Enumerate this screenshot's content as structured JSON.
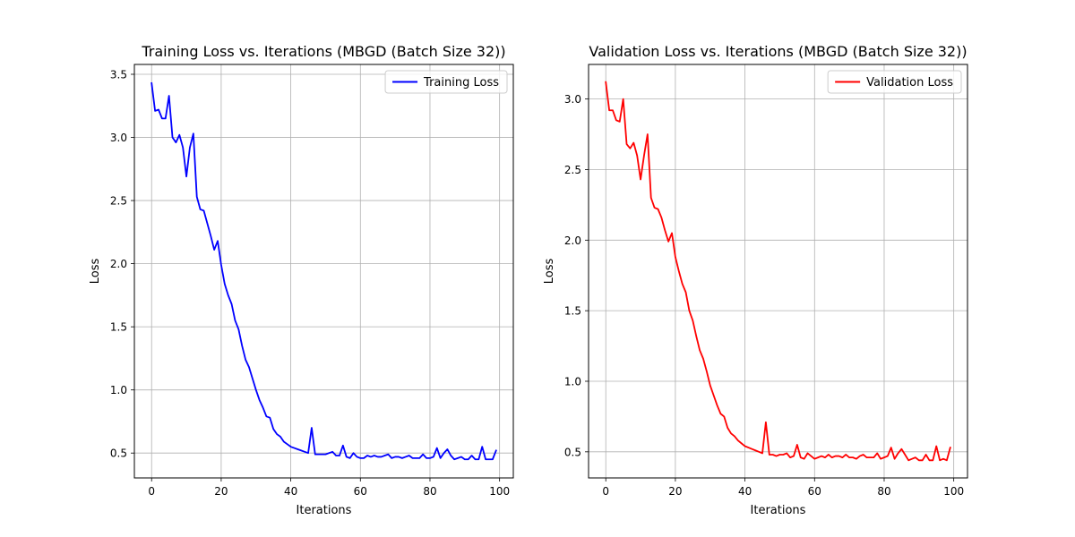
{
  "chart_data": [
    {
      "type": "line",
      "title": "Training Loss vs. Iterations (MBGD (Batch Size 32))",
      "xlabel": "Iterations",
      "ylabel": "Loss",
      "xlim": [
        -4.95,
        103.95
      ],
      "ylim": [
        0.303,
        3.578
      ],
      "xticks": [
        0,
        20,
        40,
        60,
        80,
        100
      ],
      "yticks": [
        0.5,
        1.0,
        1.5,
        2.0,
        2.5,
        3.0,
        3.5
      ],
      "grid": true,
      "legend_position": "upper right",
      "series": [
        {
          "name": "Training Loss",
          "color": "#0000ff",
          "x": [
            0,
            1,
            2,
            3,
            4,
            5,
            6,
            7,
            8,
            9,
            10,
            11,
            12,
            13,
            14,
            15,
            16,
            17,
            18,
            19,
            20,
            21,
            22,
            23,
            24,
            25,
            26,
            27,
            28,
            29,
            30,
            31,
            32,
            33,
            34,
            35,
            36,
            37,
            38,
            39,
            40,
            41,
            42,
            43,
            44,
            45,
            46,
            47,
            48,
            49,
            50,
            51,
            52,
            53,
            54,
            55,
            56,
            57,
            58,
            59,
            60,
            61,
            62,
            63,
            64,
            65,
            66,
            67,
            68,
            69,
            70,
            71,
            72,
            73,
            74,
            75,
            76,
            77,
            78,
            79,
            80,
            81,
            82,
            83,
            84,
            85,
            86,
            87,
            88,
            89,
            90,
            91,
            92,
            93,
            94,
            95,
            96,
            97,
            98,
            99
          ],
          "values": [
            3.43,
            3.21,
            3.22,
            3.15,
            3.15,
            3.33,
            3.0,
            2.96,
            3.02,
            2.92,
            2.69,
            2.92,
            3.03,
            2.53,
            2.43,
            2.42,
            2.32,
            2.22,
            2.11,
            2.18,
            1.99,
            1.84,
            1.75,
            1.68,
            1.55,
            1.48,
            1.35,
            1.24,
            1.18,
            1.09,
            1.0,
            0.92,
            0.86,
            0.79,
            0.78,
            0.69,
            0.65,
            0.63,
            0.59,
            0.57,
            0.55,
            0.54,
            0.53,
            0.52,
            0.51,
            0.5,
            0.7,
            0.49,
            0.49,
            0.49,
            0.49,
            0.5,
            0.51,
            0.48,
            0.48,
            0.56,
            0.47,
            0.46,
            0.5,
            0.47,
            0.46,
            0.46,
            0.48,
            0.47,
            0.48,
            0.47,
            0.47,
            0.48,
            0.49,
            0.46,
            0.47,
            0.47,
            0.46,
            0.47,
            0.48,
            0.46,
            0.46,
            0.46,
            0.49,
            0.46,
            0.46,
            0.47,
            0.54,
            0.46,
            0.5,
            0.53,
            0.48,
            0.45,
            0.46,
            0.47,
            0.45,
            0.45,
            0.48,
            0.45,
            0.45,
            0.55,
            0.45,
            0.45,
            0.45,
            0.52
          ]
        }
      ]
    },
    {
      "type": "line",
      "title": "Validation Loss vs. Iterations (MBGD (Batch Size 32))",
      "xlabel": "Iterations",
      "ylabel": "Loss",
      "xlim": [
        -4.95,
        103.95
      ],
      "ylim": [
        0.315,
        3.245
      ],
      "xticks": [
        0,
        20,
        40,
        60,
        80,
        100
      ],
      "yticks": [
        0.5,
        1.0,
        1.5,
        2.0,
        2.5,
        3.0
      ],
      "grid": true,
      "legend_position": "upper right",
      "series": [
        {
          "name": "Validation Loss",
          "color": "#ff0000",
          "x": [
            0,
            1,
            2,
            3,
            4,
            5,
            6,
            7,
            8,
            9,
            10,
            11,
            12,
            13,
            14,
            15,
            16,
            17,
            18,
            19,
            20,
            21,
            22,
            23,
            24,
            25,
            26,
            27,
            28,
            29,
            30,
            31,
            32,
            33,
            34,
            35,
            36,
            37,
            38,
            39,
            40,
            41,
            42,
            43,
            44,
            45,
            46,
            47,
            48,
            49,
            50,
            51,
            52,
            53,
            54,
            55,
            56,
            57,
            58,
            59,
            60,
            61,
            62,
            63,
            64,
            65,
            66,
            67,
            68,
            69,
            70,
            71,
            72,
            73,
            74,
            75,
            76,
            77,
            78,
            79,
            80,
            81,
            82,
            83,
            84,
            85,
            86,
            87,
            88,
            89,
            90,
            91,
            92,
            93,
            94,
            95,
            96,
            97,
            98,
            99
          ],
          "values": [
            3.12,
            2.92,
            2.92,
            2.85,
            2.84,
            3.0,
            2.68,
            2.65,
            2.69,
            2.6,
            2.43,
            2.6,
            2.75,
            2.3,
            2.23,
            2.22,
            2.16,
            2.07,
            1.99,
            2.05,
            1.88,
            1.78,
            1.69,
            1.63,
            1.5,
            1.43,
            1.32,
            1.22,
            1.16,
            1.07,
            0.97,
            0.9,
            0.83,
            0.77,
            0.75,
            0.67,
            0.63,
            0.61,
            0.58,
            0.56,
            0.54,
            0.53,
            0.52,
            0.51,
            0.5,
            0.49,
            0.71,
            0.48,
            0.48,
            0.47,
            0.48,
            0.48,
            0.49,
            0.46,
            0.47,
            0.55,
            0.46,
            0.45,
            0.49,
            0.47,
            0.45,
            0.46,
            0.47,
            0.46,
            0.48,
            0.46,
            0.47,
            0.47,
            0.46,
            0.48,
            0.46,
            0.46,
            0.45,
            0.47,
            0.48,
            0.46,
            0.46,
            0.46,
            0.49,
            0.45,
            0.46,
            0.47,
            0.53,
            0.45,
            0.49,
            0.52,
            0.48,
            0.44,
            0.45,
            0.46,
            0.44,
            0.44,
            0.48,
            0.44,
            0.44,
            0.54,
            0.44,
            0.45,
            0.44,
            0.53
          ]
        }
      ]
    }
  ]
}
